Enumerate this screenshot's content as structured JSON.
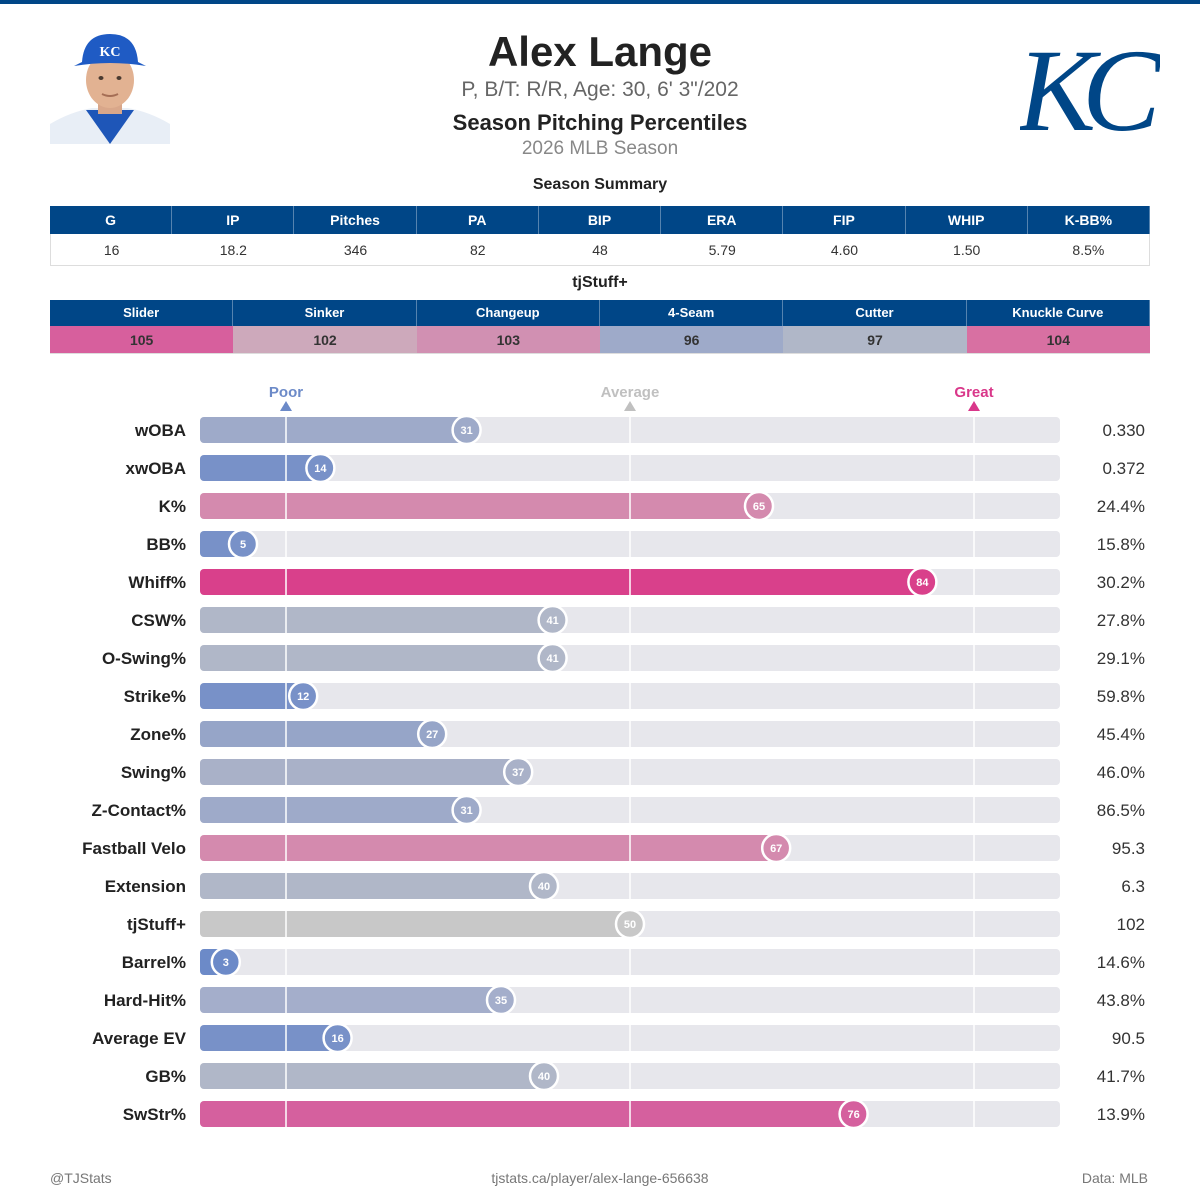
{
  "header": {
    "player_name": "Alex Lange",
    "bio": "P, B/T: R/R, Age: 30, 6' 3\"/202",
    "subtitle": "Season Pitching Percentiles",
    "season": "2026 MLB Season",
    "team_logo_text": "KC"
  },
  "summary": {
    "title": "Season Summary",
    "columns": [
      "G",
      "IP",
      "Pitches",
      "PA",
      "BIP",
      "ERA",
      "FIP",
      "WHIP",
      "K-BB%"
    ],
    "values": [
      "16",
      "18.2",
      "346",
      "82",
      "48",
      "5.79",
      "4.60",
      "1.50",
      "8.5%"
    ]
  },
  "tjstuff": {
    "title": "tjStuff+",
    "columns": [
      "Slider",
      "Sinker",
      "Changeup",
      "4-Seam",
      "Cutter",
      "Knuckle Curve"
    ],
    "values": [
      "105",
      "102",
      "103",
      "96",
      "97",
      "104"
    ],
    "colors": [
      "#d75f9d",
      "#cda9bb",
      "#d190b2",
      "#9eaac9",
      "#b0b7c8",
      "#d870a2"
    ]
  },
  "colors": {
    "brand": "#004687",
    "poor": "#6c8ac8",
    "average": "#c0c0c0",
    "great": "#d9378a",
    "track": "#e7e7ec"
  },
  "chart_data": {
    "type": "bar",
    "orientation": "horizontal",
    "xlim": [
      0,
      100
    ],
    "markers": [
      {
        "label": "Poor",
        "value": 10,
        "color": "#6c8ac8"
      },
      {
        "label": "Average",
        "value": 50,
        "color": "#c0c0c0"
      },
      {
        "label": "Great",
        "value": 90,
        "color": "#d9378a"
      }
    ],
    "categories": [
      "wOBA",
      "xwOBA",
      "K%",
      "BB%",
      "Whiff%",
      "CSW%",
      "O-Swing%",
      "Strike%",
      "Zone%",
      "Swing%",
      "Z-Contact%",
      "Fastball Velo",
      "Extension",
      "tjStuff+",
      "Barrel%",
      "Hard-Hit%",
      "Average EV",
      "GB%",
      "SwStr%"
    ],
    "values": [
      31,
      14,
      65,
      5,
      84,
      41,
      41,
      12,
      27,
      37,
      31,
      67,
      40,
      50,
      3,
      35,
      16,
      40,
      76
    ],
    "stat_values": [
      "0.330",
      "0.372",
      "24.4%",
      "15.8%",
      "30.2%",
      "27.8%",
      "29.1%",
      "59.8%",
      "45.4%",
      "46.0%",
      "86.5%",
      "95.3",
      "6.3",
      "102",
      "14.6%",
      "43.8%",
      "90.5",
      "41.7%",
      "13.9%"
    ],
    "bar_colors": [
      "#9eaac9",
      "#7891c8",
      "#d48aae",
      "#7891c8",
      "#d9408b",
      "#b0b7c8",
      "#b0b7c8",
      "#7891c8",
      "#96a5c8",
      "#a9b1c8",
      "#9eaac9",
      "#d48aae",
      "#b0b7c8",
      "#c8c8c8",
      "#6c8ac8",
      "#a4aecb",
      "#7891c8",
      "#b0b7c8",
      "#d5609e"
    ]
  },
  "footer": {
    "left": "@TJStats",
    "center": "tjstats.ca/player/alex-lange-656638",
    "right": "Data: MLB"
  }
}
